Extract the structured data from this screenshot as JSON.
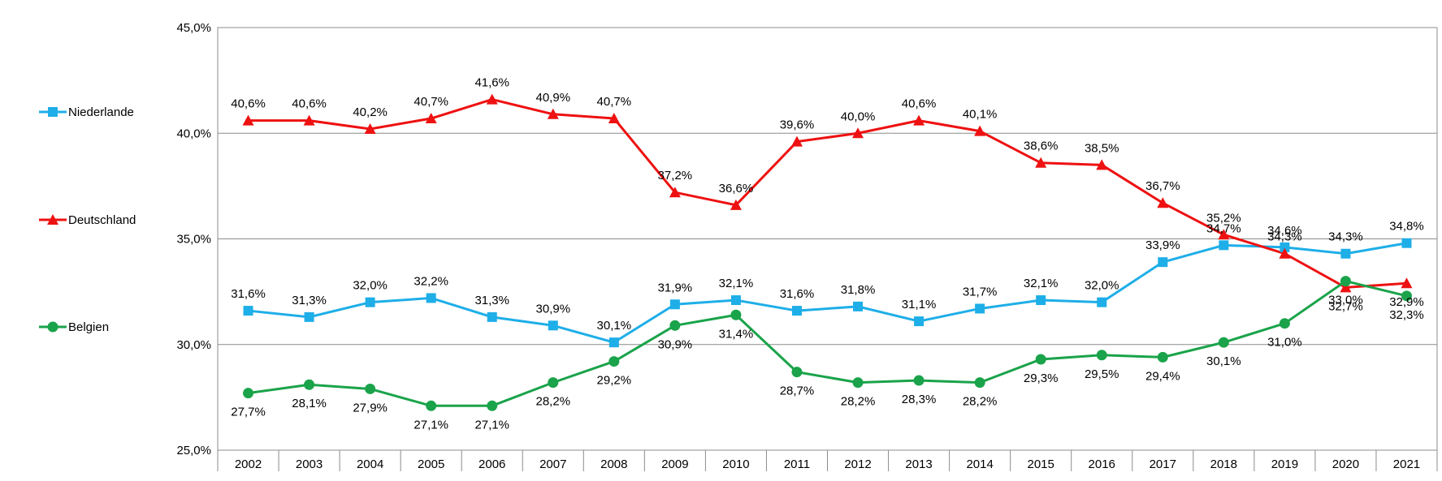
{
  "chart_data": {
    "type": "line",
    "title": "",
    "xlabel": "",
    "ylabel": "",
    "categories": [
      "2002",
      "2003",
      "2004",
      "2005",
      "2006",
      "2007",
      "2008",
      "2009",
      "2010",
      "2011",
      "2012",
      "2013",
      "2014",
      "2015",
      "2016",
      "2017",
      "2018",
      "2019",
      "2020",
      "2021"
    ],
    "ylim": [
      25,
      45
    ],
    "yticks": [
      "25,0%",
      "30,0%",
      "35,0%",
      "40,0%",
      "45,0%"
    ],
    "ytick_values": [
      25,
      30,
      35,
      40,
      45
    ],
    "grid": "horizontal",
    "legend_position": "left",
    "series": [
      {
        "name": "Niederlande",
        "color": "#1eaee8",
        "marker": "square",
        "values": [
          31.6,
          31.3,
          32.0,
          32.2,
          31.3,
          30.9,
          30.1,
          31.9,
          32.1,
          31.6,
          31.8,
          31.1,
          31.7,
          32.1,
          32.0,
          33.9,
          34.7,
          34.6,
          34.3,
          34.8
        ],
        "labels": [
          "31,6%",
          "31,3%",
          "32,0%",
          "32,2%",
          "31,3%",
          "30,9%",
          "30,1%",
          "31,9%",
          "32,1%",
          "31,6%",
          "31,8%",
          "31,1%",
          "31,7%",
          "32,1%",
          "32,0%",
          "33,9%",
          "34,7%",
          "34,6%",
          "34,3%",
          "34,8%"
        ]
      },
      {
        "name": "Deutschland",
        "color": "#ee1111",
        "marker": "triangle",
        "values": [
          40.6,
          40.6,
          40.2,
          40.7,
          41.6,
          40.9,
          40.7,
          37.2,
          36.6,
          39.6,
          40.0,
          40.6,
          40.1,
          38.6,
          38.5,
          36.7,
          35.2,
          34.3,
          32.7,
          32.9
        ],
        "labels": [
          "40,6%",
          "40,6%",
          "40,2%",
          "40,7%",
          "41,6%",
          "40,9%",
          "40,7%",
          "37,2%",
          "36,6%",
          "39,6%",
          "40,0%",
          "40,6%",
          "40,1%",
          "38,6%",
          "38,5%",
          "36,7%",
          "35,2%",
          "34,3%",
          "32,7%",
          "32,9%"
        ]
      },
      {
        "name": "Belgien",
        "color": "#1aa34a",
        "marker": "circle",
        "values": [
          27.7,
          28.1,
          27.9,
          27.1,
          27.1,
          28.2,
          29.2,
          30.9,
          31.4,
          28.7,
          28.2,
          28.3,
          28.2,
          29.3,
          29.5,
          29.4,
          30.1,
          31.0,
          33.0,
          32.3
        ],
        "labels": [
          "27,7%",
          "28,1%",
          "27,9%",
          "27,1%",
          "27,1%",
          "28,2%",
          "29,2%",
          "30,9%",
          "31,4%",
          "28,7%",
          "28,2%",
          "28,3%",
          "28,2%",
          "29,3%",
          "29,5%",
          "29,4%",
          "30,1%",
          "31,0%",
          "33,0%",
          "32,3%"
        ]
      }
    ]
  }
}
